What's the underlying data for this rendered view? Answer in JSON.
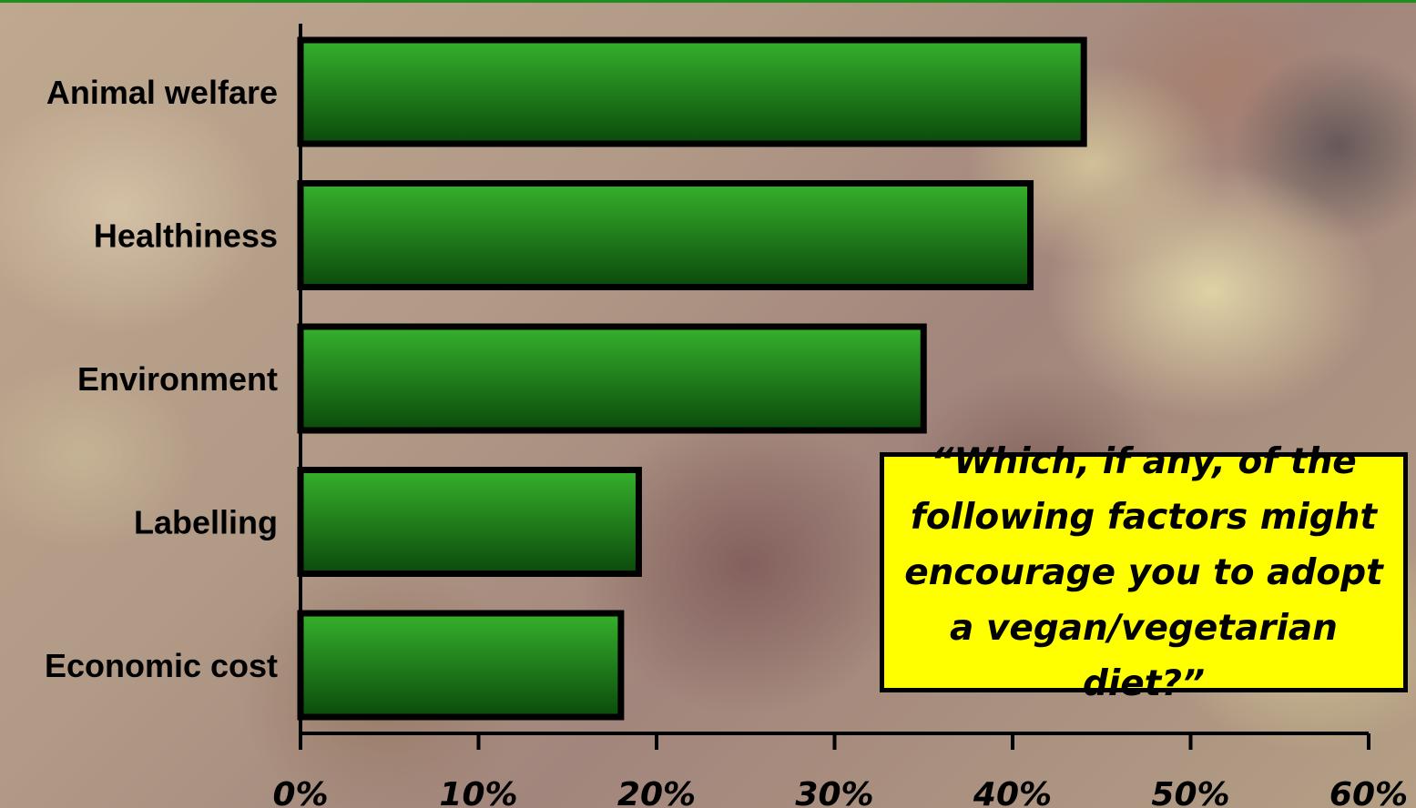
{
  "chart_data": {
    "type": "bar",
    "orientation": "horizontal",
    "categories": [
      "Animal welfare",
      "Healthiness",
      "Environment",
      "Labelling",
      "Economic cost"
    ],
    "values": [
      44,
      41,
      35,
      19,
      18
    ],
    "xlim": [
      0,
      60
    ],
    "x_ticks": [
      0,
      10,
      20,
      30,
      40,
      50,
      60
    ],
    "tick_labels": [
      "0%",
      "10%",
      "20%",
      "30%",
      "40%",
      "50%",
      "60%"
    ],
    "title": "",
    "xlabel": "",
    "ylabel": "",
    "grid": false,
    "legend": "none",
    "annotation": "“Which, if any, of the following factors might encourage you to adopt a vegan/vegetarian diet?”",
    "colors": {
      "bar_top": "#36b12c",
      "bar_bottom": "#0b4a0b",
      "bar_border": "#000000",
      "annotation_background": "#ffff00",
      "accent_line": "#1d8f1d"
    }
  }
}
